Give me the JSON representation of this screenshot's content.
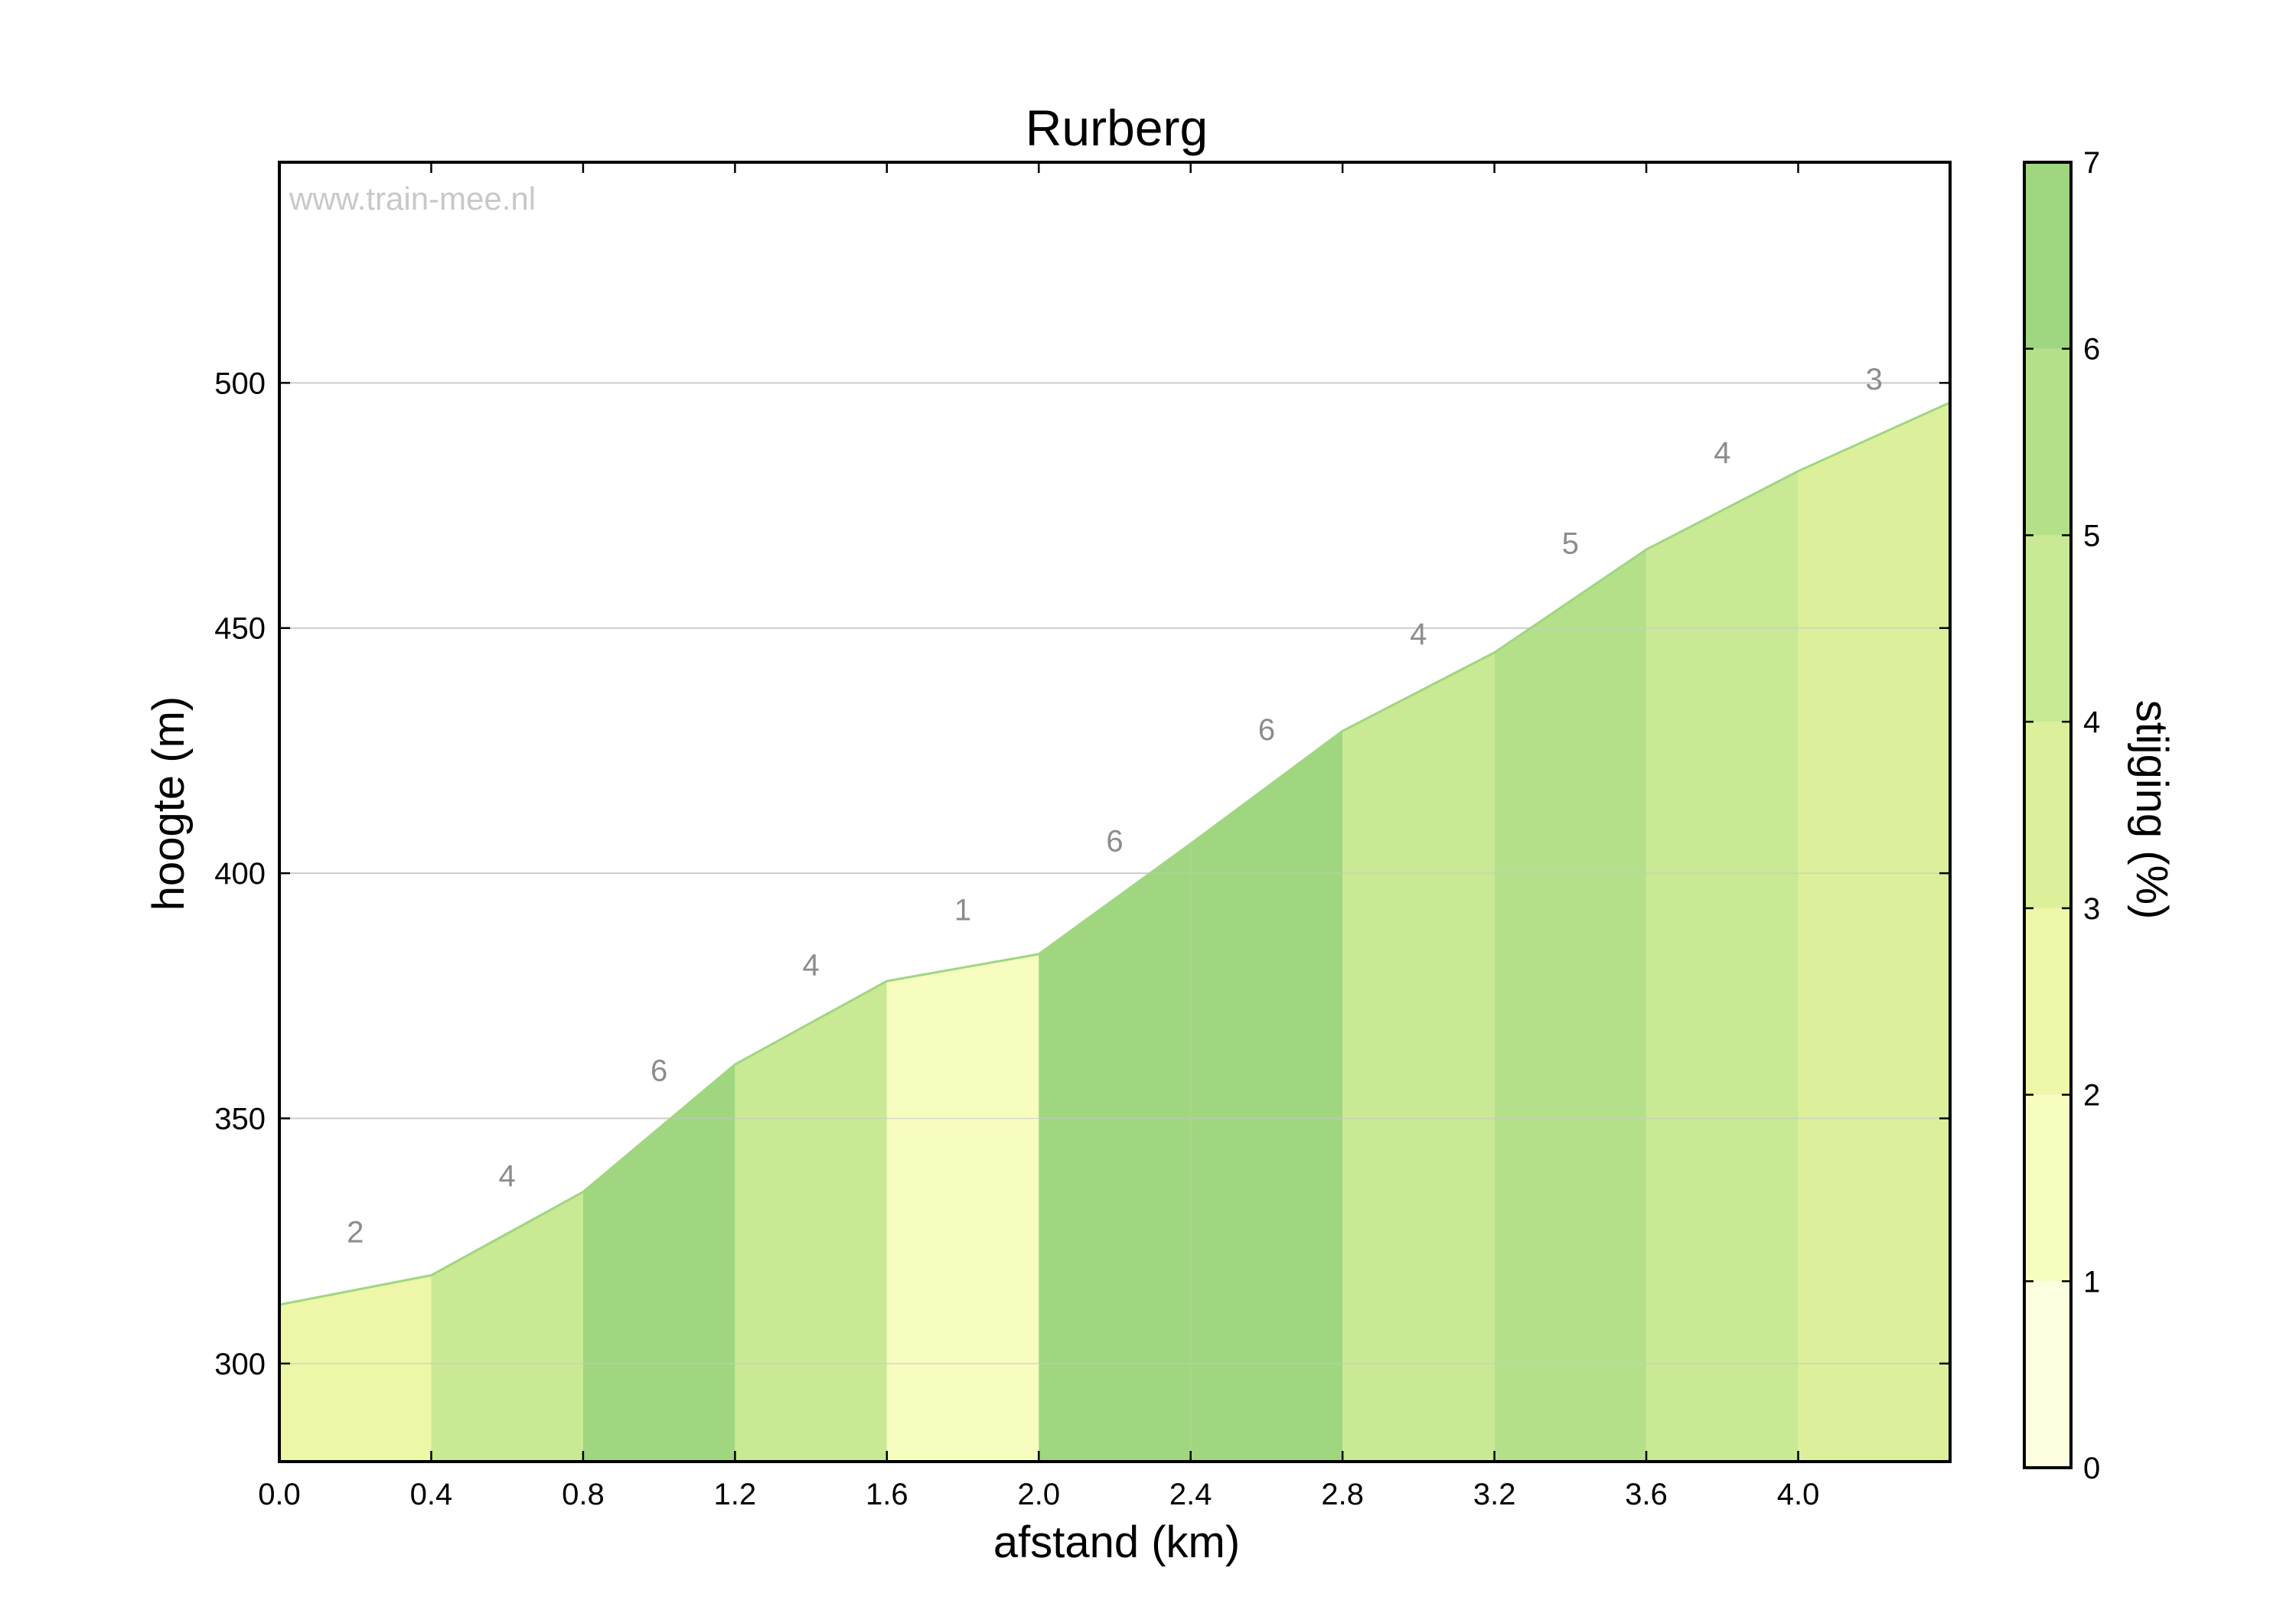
{
  "chart_data": {
    "type": "area",
    "title": "Rurberg",
    "xlabel": "afstand (km)",
    "ylabel": "hoogte (m)",
    "watermark": "www.train-mee.nl",
    "xlim": [
      0,
      4.4
    ],
    "ylim": [
      280,
      545
    ],
    "x_ticks": [
      0.0,
      0.4,
      0.8,
      1.2,
      1.6,
      2.0,
      2.4,
      2.8,
      3.2,
      3.6,
      4.0
    ],
    "x_tick_labels": [
      "0.0",
      "0.4",
      "0.8",
      "1.2",
      "1.6",
      "2.0",
      "2.4",
      "2.8",
      "3.2",
      "3.6",
      "4.0"
    ],
    "y_ticks": [
      300,
      350,
      400,
      450,
      500
    ],
    "y_tick_labels": [
      "300",
      "350",
      "400",
      "450",
      "500"
    ],
    "grid": "horizontal",
    "profile": {
      "x": [
        0.0,
        0.4,
        0.8,
        1.2,
        1.6,
        2.0,
        2.4,
        2.8,
        3.2,
        3.6,
        4.0,
        4.4
      ],
      "y": [
        312,
        318,
        335,
        361,
        378,
        383.5,
        406,
        429,
        445,
        466,
        482,
        496
      ]
    },
    "segment_grades": [
      2,
      4,
      6,
      4,
      1,
      6,
      6,
      4,
      5,
      4,
      3
    ],
    "segment_grade_labels": [
      "2",
      "4",
      "6",
      "4",
      "1",
      "6",
      "6",
      "4",
      "5",
      "4",
      "3"
    ],
    "colorbar": {
      "label": "stijging (%)",
      "range": [
        0,
        7
      ],
      "ticks": [
        0,
        1,
        2,
        3,
        4,
        5,
        6,
        7
      ],
      "tick_labels": [
        "0",
        "1",
        "2",
        "3",
        "4",
        "5",
        "6",
        "7"
      ],
      "colors": [
        "#fdfde0",
        "#f7fcbf",
        "#eef6a8",
        "#dcf09c",
        "#c9e995",
        "#b5e08a",
        "#9fd67f"
      ]
    },
    "line_color": "#9fd67f"
  }
}
